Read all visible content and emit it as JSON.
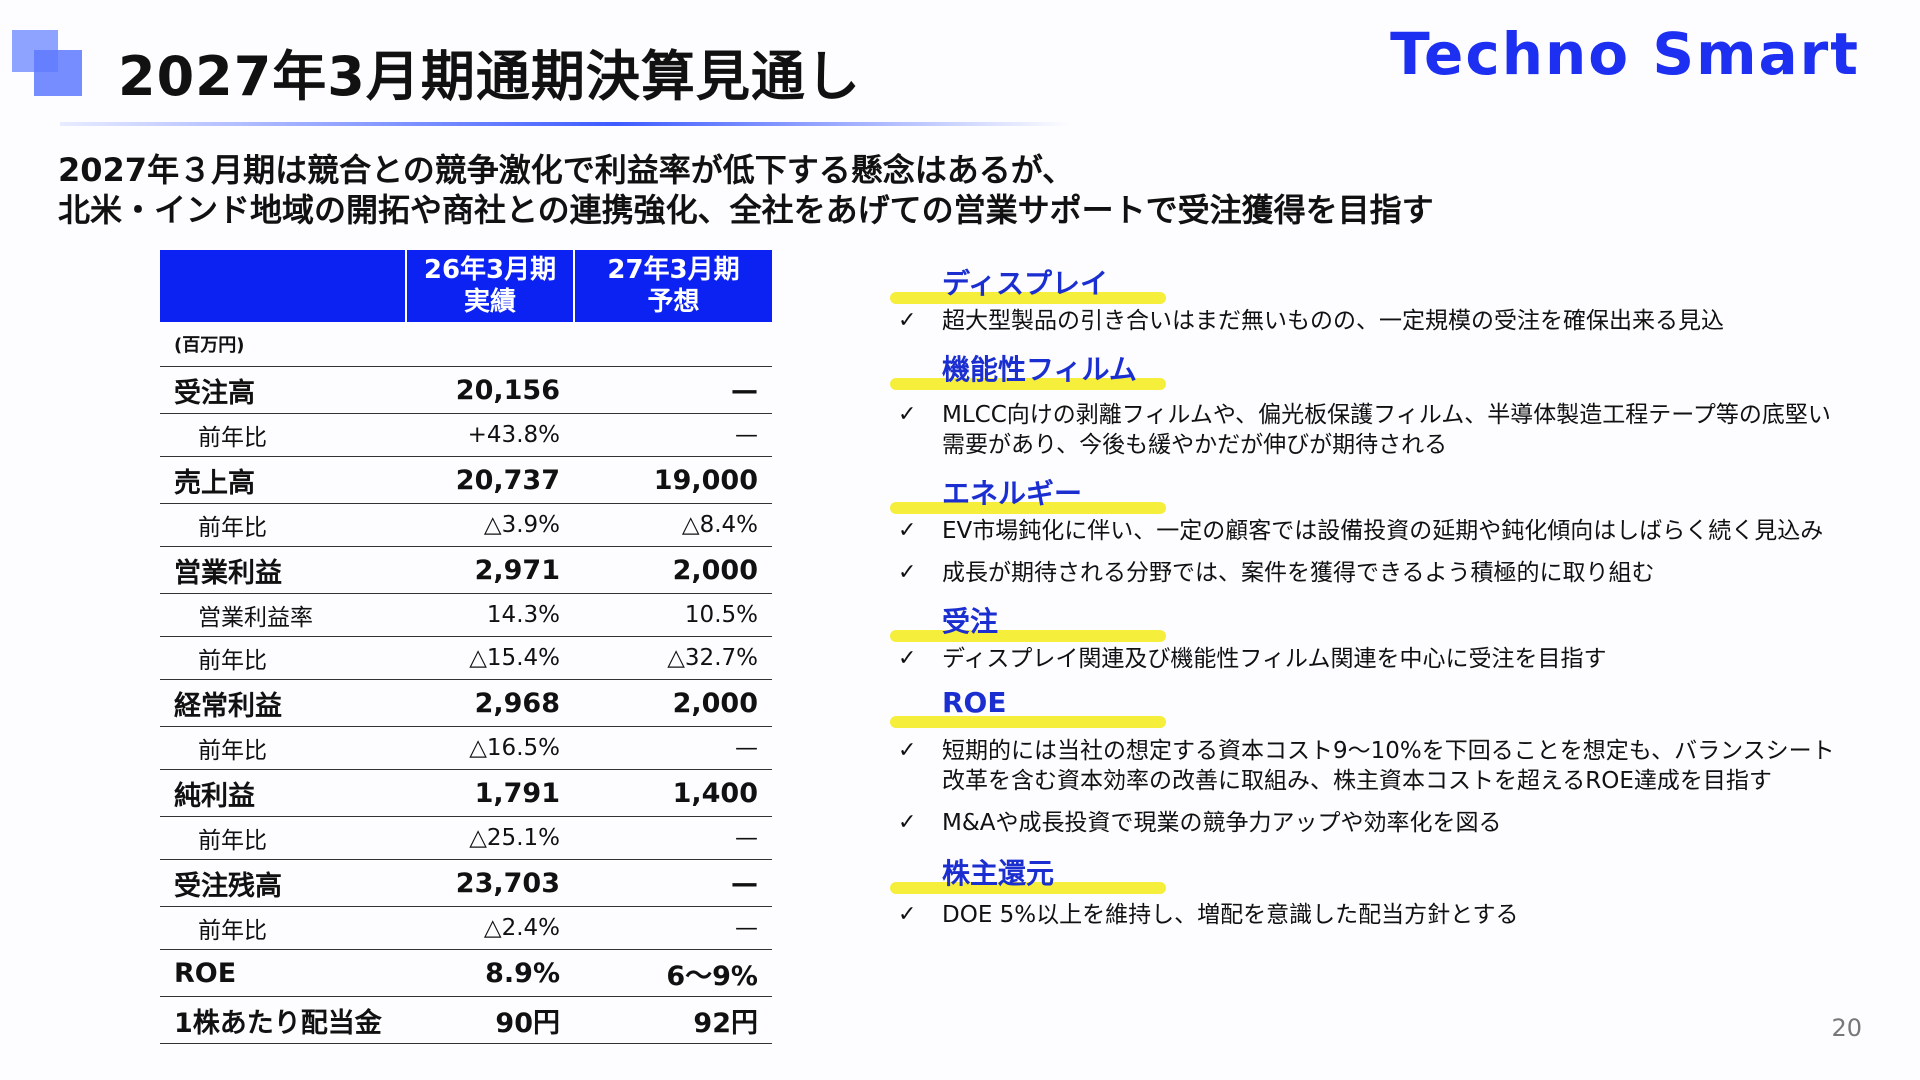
{
  "header": {
    "title": "2027年3月期通期決算見通し",
    "logo": "Techno Smart",
    "subtitle_line1": "2027年３月期は競合との競争激化で利益率が低下する懸念はあるが、",
    "subtitle_line2": "北米・インド地域の開拓や商社との連携強化、全社をあげての営業サポートで受注獲得を目指す"
  },
  "table": {
    "col1_line1": "26年3月期",
    "col1_line2": "実績",
    "col2_line1": "27年3月期",
    "col2_line2": "予想",
    "unit": "(百万円)",
    "rows": [
      {
        "label": "受注高",
        "v1": "20,156",
        "v2": "—"
      },
      {
        "label": "前年比",
        "v1": "+43.8%",
        "v2": "—"
      },
      {
        "label": "売上高",
        "v1": "20,737",
        "v2": "19,000"
      },
      {
        "label": "前年比",
        "v1": "△3.9%",
        "v2": "△8.4%"
      },
      {
        "label": "営業利益",
        "v1": "2,971",
        "v2": "2,000"
      },
      {
        "label": "営業利益率",
        "v1": "14.3%",
        "v2": "10.5%"
      },
      {
        "label": "前年比",
        "v1": "△15.4%",
        "v2": "△32.7%"
      },
      {
        "label": "経常利益",
        "v1": "2,968",
        "v2": "2,000"
      },
      {
        "label": "前年比",
        "v1": "△16.5%",
        "v2": "—"
      },
      {
        "label": "純利益",
        "v1": "1,791",
        "v2": "1,400"
      },
      {
        "label": "前年比",
        "v1": "△25.1%",
        "v2": "—"
      },
      {
        "label": "受注残高",
        "v1": "23,703",
        "v2": "—"
      },
      {
        "label": "前年比",
        "v1": "△2.4%",
        "v2": "—"
      },
      {
        "label": "ROE",
        "v1": "8.9%",
        "v2": "6〜9%"
      },
      {
        "label": "1株あたり配当金",
        "v1": "90円",
        "v2": "92円"
      }
    ]
  },
  "sections": {
    "display": {
      "title": "ディスプレイ",
      "b1": "超大型製品の引き合いはまだ無いものの、一定規模の受注を確保出来る見込"
    },
    "film": {
      "title": "機能性フィルム",
      "b1_l1": "MLCC向けの剥離フィルムや、偏光板保護フィルム、半導体製造工程テープ等の底堅い",
      "b1_l2": "需要があり、今後も緩やかだが伸びが期待される"
    },
    "energy": {
      "title": "エネルギー",
      "b1": "EV市場鈍化に伴い、一定の顧客では設備投資の延期や鈍化傾向はしばらく続く見込み",
      "b2": "成長が期待される分野では、案件を獲得できるよう積極的に取り組む"
    },
    "orders": {
      "title": "受注",
      "b1": "ディスプレイ関連及び機能性フィルム関連を中心に受注を目指す"
    },
    "roe": {
      "title": "ROE",
      "b1_l1": "短期的には当社の想定する資本コスト9〜10%を下回ることを想定も、バランスシート",
      "b1_l2": "改革を含む資本効率の改善に取組み、株主資本コストを超えるROE達成を目指す",
      "b2": "M&Aや成長投資で現業の競争力アップや効率化を図る"
    },
    "return": {
      "title": "株主還元",
      "b1": "DOE 5%以上を維持し、増配を意識した配当方針とする"
    }
  },
  "check": "✓",
  "page_number": "20"
}
